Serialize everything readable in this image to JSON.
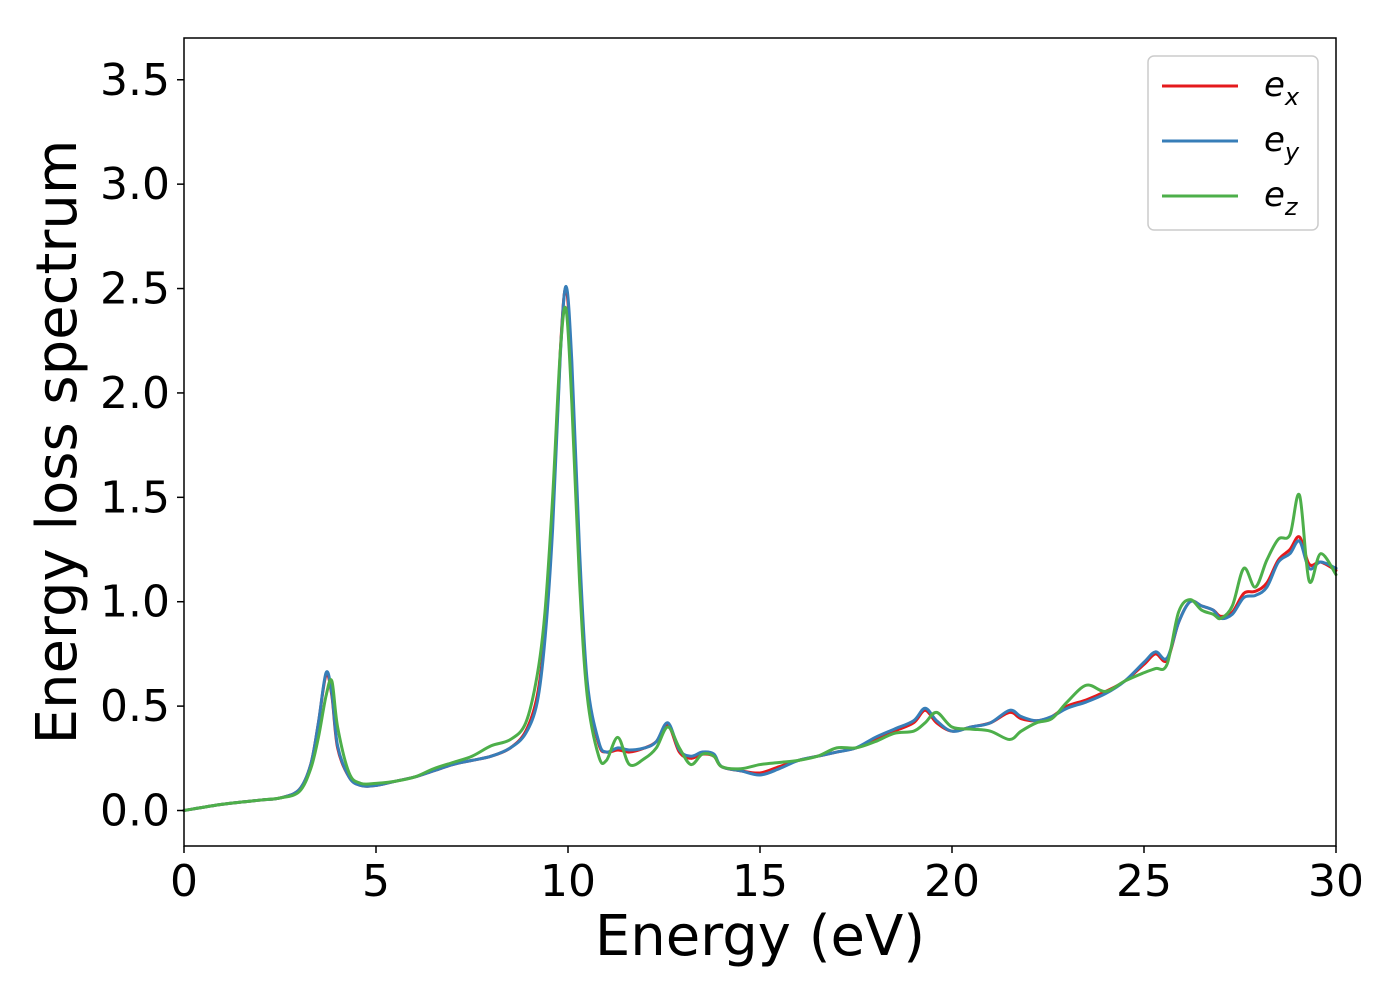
{
  "chart_data": {
    "type": "line",
    "xlabel": "Energy (eV)",
    "ylabel": "Energy loss spectrum",
    "xlim": [
      0,
      30
    ],
    "ylim": [
      -0.17,
      3.7
    ],
    "xticks": [
      0,
      5,
      10,
      15,
      20,
      25,
      30
    ],
    "yticks": [
      0.0,
      0.5,
      1.0,
      1.5,
      2.0,
      2.5,
      3.0,
      3.5
    ],
    "xtick_labels": [
      "0",
      "5",
      "10",
      "15",
      "20",
      "25",
      "30"
    ],
    "ytick_labels": [
      "0.0",
      "0.5",
      "1.0",
      "1.5",
      "2.0",
      "2.5",
      "3.0",
      "3.5"
    ],
    "grid": false,
    "legend_position": "top-right",
    "series": [
      {
        "name": "e_x",
        "legend_base": "e",
        "legend_sub": "x",
        "color": "#e41a1c",
        "x": [
          0,
          1,
          2,
          2.5,
          3.0,
          3.3,
          3.5,
          3.7,
          3.85,
          4.0,
          4.3,
          4.6,
          5.0,
          5.5,
          6.0,
          6.5,
          7.0,
          7.5,
          8.0,
          8.5,
          8.9,
          9.2,
          9.4,
          9.6,
          9.8,
          9.95,
          10.1,
          10.3,
          10.5,
          10.8,
          11.0,
          11.3,
          11.6,
          12.0,
          12.3,
          12.6,
          12.9,
          13.2,
          13.5,
          13.8,
          14.0,
          14.5,
          15.0,
          15.5,
          16.0,
          16.5,
          17.0,
          17.5,
          18.0,
          18.5,
          19.0,
          19.3,
          19.6,
          20.0,
          20.5,
          21.0,
          21.5,
          21.8,
          22.2,
          22.6,
          23.0,
          23.5,
          24.0,
          24.5,
          25.0,
          25.3,
          25.6,
          25.9,
          26.2,
          26.5,
          26.8,
          27.0,
          27.3,
          27.6,
          27.9,
          28.2,
          28.5,
          28.8,
          29.05,
          29.3,
          29.6,
          30.0
        ],
        "y": [
          0.0,
          0.03,
          0.05,
          0.06,
          0.1,
          0.22,
          0.42,
          0.65,
          0.55,
          0.3,
          0.16,
          0.12,
          0.12,
          0.14,
          0.16,
          0.19,
          0.22,
          0.24,
          0.26,
          0.3,
          0.38,
          0.55,
          0.85,
          1.4,
          2.2,
          2.5,
          2.1,
          1.2,
          0.6,
          0.32,
          0.28,
          0.29,
          0.28,
          0.3,
          0.33,
          0.41,
          0.28,
          0.25,
          0.27,
          0.26,
          0.21,
          0.19,
          0.18,
          0.21,
          0.24,
          0.26,
          0.28,
          0.3,
          0.34,
          0.38,
          0.42,
          0.48,
          0.42,
          0.38,
          0.4,
          0.42,
          0.47,
          0.44,
          0.43,
          0.45,
          0.5,
          0.53,
          0.57,
          0.62,
          0.7,
          0.75,
          0.72,
          0.9,
          1.0,
          0.98,
          0.96,
          0.93,
          0.95,
          1.04,
          1.05,
          1.09,
          1.2,
          1.25,
          1.31,
          1.18,
          1.19,
          1.15
        ]
      },
      {
        "name": "e_y",
        "legend_base": "e",
        "legend_sub": "y",
        "color": "#377eb8",
        "x": [
          0,
          1,
          2,
          2.5,
          3.0,
          3.3,
          3.5,
          3.7,
          3.85,
          4.0,
          4.3,
          4.6,
          5.0,
          5.5,
          6.0,
          6.5,
          7.0,
          7.5,
          8.0,
          8.5,
          8.9,
          9.2,
          9.4,
          9.6,
          9.8,
          9.95,
          10.1,
          10.3,
          10.5,
          10.8,
          11.0,
          11.3,
          11.6,
          12.0,
          12.3,
          12.6,
          12.9,
          13.2,
          13.5,
          13.8,
          14.0,
          14.5,
          15.0,
          15.5,
          16.0,
          16.5,
          17.0,
          17.5,
          18.0,
          18.5,
          19.0,
          19.3,
          19.6,
          20.0,
          20.5,
          21.0,
          21.5,
          21.8,
          22.2,
          22.6,
          23.0,
          23.5,
          24.0,
          24.5,
          25.0,
          25.3,
          25.6,
          25.9,
          26.2,
          26.5,
          26.8,
          27.0,
          27.3,
          27.6,
          27.9,
          28.2,
          28.5,
          28.8,
          29.05,
          29.3,
          29.6,
          30.0
        ],
        "y": [
          0.0,
          0.03,
          0.05,
          0.06,
          0.1,
          0.22,
          0.42,
          0.66,
          0.56,
          0.31,
          0.16,
          0.12,
          0.12,
          0.14,
          0.16,
          0.19,
          0.22,
          0.24,
          0.26,
          0.3,
          0.37,
          0.52,
          0.82,
          1.35,
          2.18,
          2.51,
          2.15,
          1.25,
          0.62,
          0.33,
          0.28,
          0.3,
          0.29,
          0.3,
          0.33,
          0.42,
          0.29,
          0.26,
          0.28,
          0.27,
          0.21,
          0.19,
          0.17,
          0.2,
          0.24,
          0.26,
          0.28,
          0.3,
          0.35,
          0.39,
          0.43,
          0.49,
          0.43,
          0.38,
          0.4,
          0.42,
          0.48,
          0.45,
          0.43,
          0.45,
          0.49,
          0.52,
          0.56,
          0.62,
          0.71,
          0.76,
          0.73,
          0.9,
          1.0,
          0.98,
          0.96,
          0.92,
          0.94,
          1.02,
          1.03,
          1.07,
          1.19,
          1.23,
          1.29,
          1.16,
          1.19,
          1.16
        ]
      },
      {
        "name": "e_z",
        "legend_base": "e",
        "legend_sub": "z",
        "color": "#4daf4a",
        "x": [
          0,
          1,
          2,
          2.5,
          3.0,
          3.3,
          3.5,
          3.7,
          3.85,
          4.0,
          4.3,
          4.6,
          5.0,
          5.5,
          6.0,
          6.5,
          7.0,
          7.5,
          8.0,
          8.5,
          8.9,
          9.2,
          9.4,
          9.6,
          9.8,
          9.95,
          10.1,
          10.3,
          10.5,
          10.8,
          11.0,
          11.3,
          11.6,
          12.0,
          12.3,
          12.6,
          12.9,
          13.2,
          13.5,
          13.8,
          14.0,
          14.5,
          15.0,
          15.5,
          16.0,
          16.5,
          17.0,
          17.5,
          18.0,
          18.5,
          19.0,
          19.3,
          19.6,
          20.0,
          20.5,
          21.0,
          21.5,
          21.8,
          22.2,
          22.6,
          23.0,
          23.5,
          24.0,
          24.5,
          25.0,
          25.3,
          25.6,
          25.9,
          26.2,
          26.5,
          26.8,
          27.0,
          27.3,
          27.6,
          27.9,
          28.2,
          28.5,
          28.8,
          29.05,
          29.3,
          29.6,
          30.0
        ],
        "y": [
          0.0,
          0.03,
          0.05,
          0.06,
          0.09,
          0.2,
          0.35,
          0.55,
          0.62,
          0.4,
          0.18,
          0.13,
          0.13,
          0.14,
          0.16,
          0.2,
          0.23,
          0.26,
          0.31,
          0.34,
          0.42,
          0.65,
          0.95,
          1.5,
          2.2,
          2.4,
          1.95,
          1.1,
          0.55,
          0.26,
          0.24,
          0.35,
          0.22,
          0.25,
          0.3,
          0.4,
          0.3,
          0.22,
          0.27,
          0.26,
          0.21,
          0.2,
          0.22,
          0.23,
          0.24,
          0.26,
          0.3,
          0.3,
          0.33,
          0.37,
          0.38,
          0.42,
          0.47,
          0.4,
          0.39,
          0.38,
          0.34,
          0.38,
          0.42,
          0.44,
          0.52,
          0.6,
          0.57,
          0.62,
          0.66,
          0.68,
          0.7,
          0.95,
          1.01,
          0.96,
          0.94,
          0.92,
          0.98,
          1.16,
          1.07,
          1.2,
          1.3,
          1.32,
          1.51,
          1.1,
          1.23,
          1.13
        ]
      }
    ]
  }
}
